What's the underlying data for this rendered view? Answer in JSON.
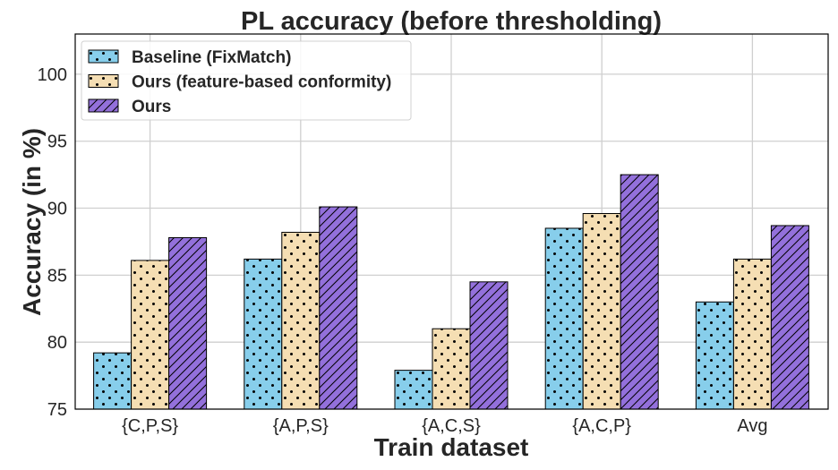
{
  "chart_data": {
    "type": "bar",
    "title": "PL accuracy (before thresholding)",
    "xlabel": "Train dataset",
    "ylabel": "Accuracy (in %)",
    "categories": [
      "{C,P,S}",
      "{A,P,S}",
      "{A,C,S}",
      "{A,C,P}",
      "Avg"
    ],
    "ylim": [
      75,
      103
    ],
    "yticks": [
      75,
      80,
      85,
      90,
      95,
      100
    ],
    "grid": true,
    "legend_position": "top-left",
    "series": [
      {
        "name": "Baseline (FixMatch)",
        "values": [
          79.2,
          86.2,
          77.9,
          88.5,
          83.0
        ],
        "color": "#87ceeb",
        "hatch": "dots"
      },
      {
        "name": "Ours (feature-based conformity)",
        "values": [
          86.1,
          88.2,
          81.0,
          89.6,
          86.2
        ],
        "color": "#f5deb3",
        "hatch": "dots"
      },
      {
        "name": "Ours",
        "values": [
          87.8,
          90.1,
          84.5,
          92.5,
          88.7
        ],
        "color": "#9370db",
        "hatch": "diagonal"
      }
    ]
  }
}
